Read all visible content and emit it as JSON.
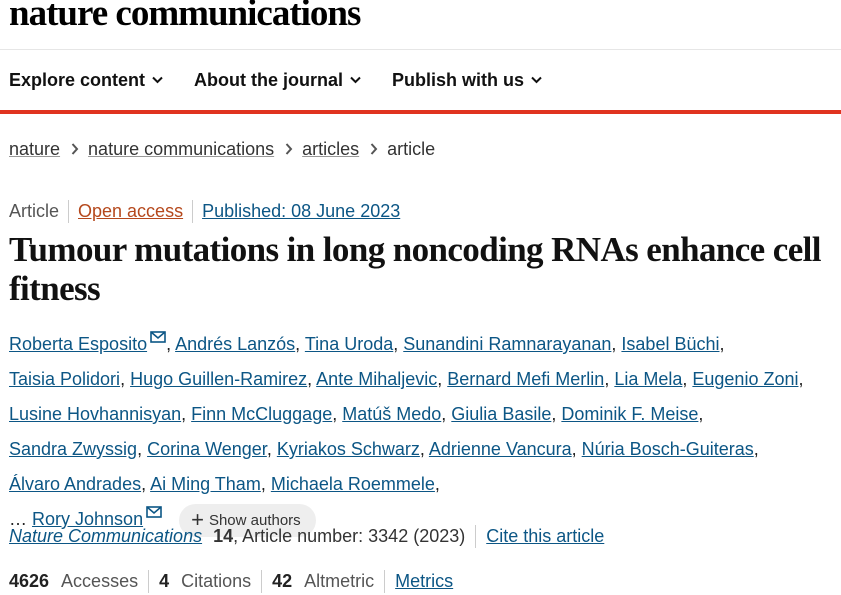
{
  "header": {
    "logo_text": "nature communications"
  },
  "nav": {
    "items": [
      {
        "label": "Explore content"
      },
      {
        "label": "About the journal"
      },
      {
        "label": "Publish with us"
      }
    ]
  },
  "breadcrumb": {
    "items": [
      "nature",
      "nature communications",
      "articles",
      "article"
    ]
  },
  "article": {
    "type": "Article",
    "access": "Open access",
    "published": "Published: 08 June 2023",
    "title": "Tumour mutations in long noncoding RNAs enhance cell fitness",
    "authors": [
      "Roberta Esposito",
      "Andrés Lanzós",
      "Tina Uroda",
      "Sunandini Ramnarayanan",
      "Isabel Büchi",
      "Taisia Polidori",
      "Hugo Guillen-Ramirez",
      "Ante Mihaljevic",
      "Bernard Mefi Merlin",
      "Lia Mela",
      "Eugenio Zoni",
      "Lusine Hovhannisyan",
      "Finn McCluggage",
      "Matúš Medo",
      "Giulia Basile",
      "Dominik F. Meise",
      "Sandra Zwyssig",
      "Corina Wenger",
      "Kyriakos Schwarz",
      "Adrienne Vancura",
      "Núria Bosch-Guiteras",
      "Álvaro Andrades",
      "Ai Ming Tham",
      "Michaela Roemmele"
    ],
    "ellipsis": "…",
    "last_author": "Rory Johnson",
    "show_authors_label": "Show authors",
    "journal": "Nature Communications",
    "volume": "14",
    "article_number": ", Article number: 3342 (2023)",
    "cite_label": "Cite this article"
  },
  "metrics": {
    "accesses_value": "4626",
    "accesses_label": "Accesses",
    "citations_value": "4",
    "citations_label": "Citations",
    "altmetric_value": "42",
    "altmetric_label": "Altmetric",
    "metrics_link": "Metrics"
  },
  "colors": {
    "accent_red": "#e0331f",
    "link": "#0c5685",
    "open_access": "#b5481c"
  },
  "icons": [
    "chevron-down-icon",
    "chevron-right-icon",
    "envelope-icon",
    "plus-icon"
  ]
}
